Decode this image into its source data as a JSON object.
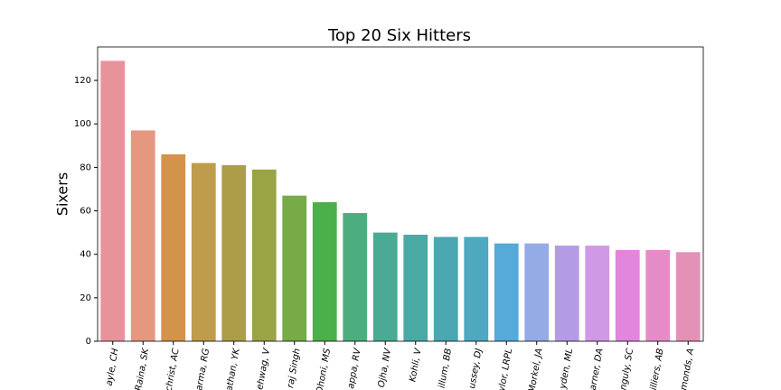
{
  "chart_data": {
    "type": "bar",
    "title": "Top 20 Six Hitters",
    "y_label": "Sixers",
    "categories": [
      "ayle, CH",
      "Raina, SK",
      "christ, AC",
      "arma, RG",
      "athan, YK",
      "ehwag, V",
      "raj Singh",
      "Dhoni, MS",
      "appa, RV",
      "Ojha, NV",
      "Kohli, V",
      "illum, BB",
      "ussey, DJ",
      "ylor, LRPL",
      "Morkel, JA",
      "yden, ML",
      "arner, DA",
      "nguly, SC",
      "illiers, AB",
      "monds, A"
    ],
    "values": [
      129,
      97,
      86,
      82,
      81,
      79,
      67,
      64,
      59,
      50,
      49,
      48,
      48,
      45,
      45,
      44,
      44,
      42,
      42,
      41
    ],
    "colors": [
      "#e8939c",
      "#e5977f",
      "#d4934a",
      "#bf9c4b",
      "#ae9d48",
      "#9aa445",
      "#76ab48",
      "#4cb04a",
      "#4cae7f",
      "#4aaa94",
      "#4aa9a3",
      "#4ba7b1",
      "#4ea8c0",
      "#56aad8",
      "#94abe5",
      "#b39ce5",
      "#cf99e5",
      "#e286dd",
      "#e58cc8",
      "#e491b8"
    ],
    "ylim": [
      0,
      135.4
    ],
    "yticks": [
      0,
      20,
      40,
      60,
      80,
      100,
      120
    ],
    "grid": false
  }
}
